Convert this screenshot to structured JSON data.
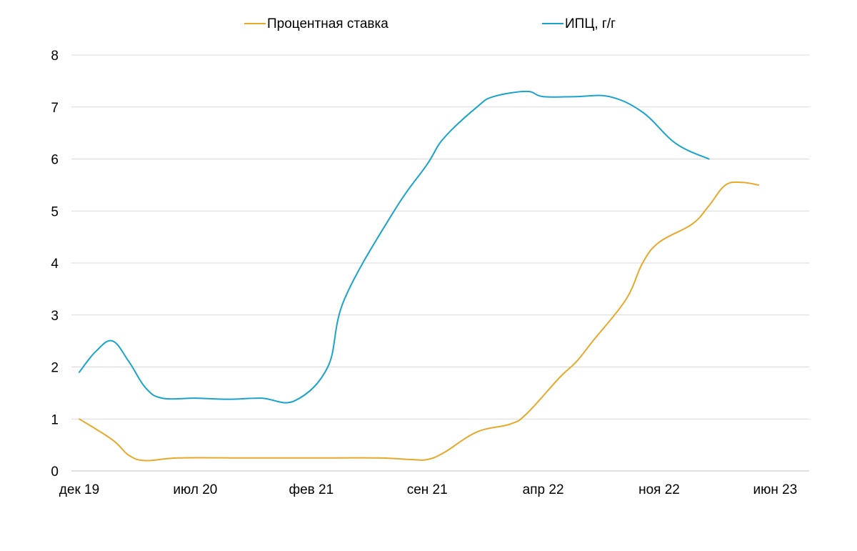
{
  "chart_data": {
    "type": "line",
    "title": "",
    "xlabel": "",
    "ylabel": "",
    "ylim": [
      0,
      8
    ],
    "yticks": [
      "0",
      "1",
      "2",
      "3",
      "4",
      "5",
      "6",
      "7",
      "8"
    ],
    "grid": true,
    "legend_position": "top",
    "x_tick_labels": [
      "дек 19",
      "июл 20",
      "фев 21",
      "сен 21",
      "апр 22",
      "ноя 22",
      "июн 23"
    ],
    "x_tick_months": [
      0,
      7,
      14,
      21,
      28,
      35,
      42
    ],
    "series": [
      {
        "name": "Процентная ставка",
        "color": "#e8a82a",
        "points": [
          [
            0,
            1.0
          ],
          [
            2,
            0.6
          ],
          [
            3,
            0.3
          ],
          [
            4,
            0.2
          ],
          [
            6,
            0.25
          ],
          [
            10,
            0.25
          ],
          [
            14,
            0.25
          ],
          [
            18,
            0.25
          ],
          [
            20,
            0.22
          ],
          [
            21,
            0.22
          ],
          [
            22,
            0.35
          ],
          [
            24,
            0.75
          ],
          [
            26,
            0.9
          ],
          [
            27,
            1.1
          ],
          [
            29,
            1.8
          ],
          [
            30,
            2.1
          ],
          [
            31,
            2.5
          ],
          [
            33,
            3.3
          ],
          [
            34,
            4.0
          ],
          [
            35,
            4.4
          ],
          [
            37,
            4.75
          ],
          [
            38,
            5.1
          ],
          [
            39,
            5.5
          ],
          [
            40,
            5.55
          ],
          [
            41,
            5.5
          ]
        ]
      },
      {
        "name": "ИПЦ, г/г",
        "color": "#1aa3cd",
        "points": [
          [
            0,
            1.9
          ],
          [
            1,
            2.3
          ],
          [
            2,
            2.5
          ],
          [
            3,
            2.1
          ],
          [
            4,
            1.6
          ],
          [
            5,
            1.4
          ],
          [
            7,
            1.4
          ],
          [
            9,
            1.38
          ],
          [
            11,
            1.4
          ],
          [
            13,
            1.35
          ],
          [
            15,
            2.0
          ],
          [
            16,
            3.3
          ],
          [
            19,
            5.0
          ],
          [
            21,
            5.9
          ],
          [
            22,
            6.4
          ],
          [
            24,
            7.0
          ],
          [
            25,
            7.2
          ],
          [
            27,
            7.3
          ],
          [
            28,
            7.2
          ],
          [
            30,
            7.2
          ],
          [
            32,
            7.2
          ],
          [
            34,
            6.9
          ],
          [
            36,
            6.3
          ],
          [
            38,
            6.0
          ]
        ]
      }
    ]
  }
}
